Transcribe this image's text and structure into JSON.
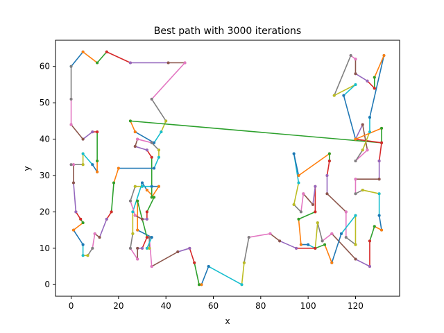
{
  "chart_data": {
    "type": "line",
    "title": "Best path with 3000 iterations",
    "xlabel": "x",
    "ylabel": "y",
    "xlim": [
      -6.6,
      138.6
    ],
    "ylim": [
      -3.2,
      67.2
    ],
    "xticks": [
      0,
      20,
      40,
      60,
      80,
      100,
      120
    ],
    "yticks": [
      0,
      10,
      20,
      30,
      40,
      50,
      60
    ],
    "grid": false,
    "colors": [
      "#1f77b4",
      "#ff7f0e",
      "#2ca02c",
      "#d62728",
      "#9467bd",
      "#8c564b",
      "#e377c2",
      "#7f7f7f",
      "#bcbd22",
      "#17becf"
    ],
    "path": [
      [
        0,
        60
      ],
      [
        5,
        64
      ],
      [
        11,
        61
      ],
      [
        15,
        64
      ],
      [
        25,
        61
      ],
      [
        41,
        61
      ],
      [
        48,
        61
      ],
      [
        34,
        51
      ],
      [
        40,
        45
      ],
      [
        38,
        42
      ],
      [
        35,
        39
      ],
      [
        27,
        42
      ],
      [
        25,
        45
      ],
      [
        131,
        39
      ],
      [
        120,
        40
      ],
      [
        123,
        44
      ],
      [
        125,
        37
      ],
      [
        120,
        34
      ],
      [
        123,
        37
      ],
      [
        126,
        42
      ],
      [
        126,
        46
      ],
      [
        132,
        63
      ],
      [
        128,
        57
      ],
      [
        128,
        54
      ],
      [
        125,
        56
      ],
      [
        120,
        58
      ],
      [
        120,
        62
      ],
      [
        118,
        63
      ],
      [
        111,
        52
      ],
      [
        120,
        55
      ],
      [
        115,
        52
      ],
      [
        120,
        40
      ],
      [
        131,
        43
      ],
      [
        131,
        39
      ],
      [
        130,
        34
      ],
      [
        130,
        29
      ],
      [
        120,
        29
      ],
      [
        120,
        25
      ],
      [
        123,
        26
      ],
      [
        130,
        25
      ],
      [
        130,
        19
      ],
      [
        131,
        15
      ],
      [
        128,
        16
      ],
      [
        126,
        12
      ],
      [
        126,
        5
      ],
      [
        120,
        7
      ],
      [
        110,
        14
      ],
      [
        106,
        12
      ],
      [
        104,
        17
      ],
      [
        103,
        10
      ],
      [
        100,
        11
      ],
      [
        97,
        11
      ],
      [
        96,
        18
      ],
      [
        103,
        20
      ],
      [
        103,
        27
      ],
      [
        102,
        22
      ],
      [
        98,
        25
      ],
      [
        97,
        20
      ],
      [
        94,
        22
      ],
      [
        96,
        28
      ],
      [
        94,
        36
      ],
      [
        96,
        30
      ],
      [
        109,
        36
      ],
      [
        109,
        34
      ],
      [
        108,
        30
      ],
      [
        108,
        25
      ],
      [
        116,
        20
      ],
      [
        116,
        13
      ],
      [
        120,
        11
      ],
      [
        120,
        19
      ],
      [
        114,
        14
      ],
      [
        110,
        6
      ],
      [
        107,
        11
      ],
      [
        103,
        10
      ],
      [
        95,
        10
      ],
      [
        88,
        12
      ],
      [
        84,
        14
      ],
      [
        75,
        13
      ],
      [
        73,
        6
      ],
      [
        72,
        0
      ],
      [
        58,
        5
      ],
      [
        55,
        0
      ],
      [
        54,
        0
      ],
      [
        52,
        6
      ],
      [
        50,
        10
      ],
      [
        45,
        9
      ],
      [
        34,
        5
      ],
      [
        33,
        13
      ],
      [
        33,
        10
      ],
      [
        32,
        10
      ],
      [
        34,
        13
      ],
      [
        28,
        15
      ],
      [
        28,
        23
      ],
      [
        32,
        13
      ],
      [
        30,
        10
      ],
      [
        28,
        10
      ],
      [
        28,
        7
      ],
      [
        25,
        10
      ],
      [
        26,
        14
      ],
      [
        26,
        20
      ],
      [
        30,
        28
      ],
      [
        32,
        26
      ],
      [
        35,
        24
      ],
      [
        32,
        20
      ],
      [
        32,
        18
      ],
      [
        30,
        18
      ],
      [
        27,
        19
      ],
      [
        25,
        23
      ],
      [
        27,
        27
      ],
      [
        30,
        27
      ],
      [
        34,
        27
      ],
      [
        37,
        27
      ],
      [
        34,
        24
      ],
      [
        34,
        35
      ],
      [
        32,
        37
      ],
      [
        27,
        38
      ],
      [
        28,
        40
      ],
      [
        34,
        39
      ],
      [
        37,
        37
      ],
      [
        37,
        35
      ],
      [
        35,
        32
      ],
      [
        20,
        32
      ],
      [
        18,
        28
      ],
      [
        17,
        20
      ],
      [
        15,
        18
      ],
      [
        12,
        13
      ],
      [
        10,
        14
      ],
      [
        9,
        10
      ],
      [
        7,
        8
      ],
      [
        5,
        8
      ],
      [
        5,
        11
      ],
      [
        1,
        15
      ],
      [
        5,
        17
      ],
      [
        4,
        18
      ],
      [
        2,
        20
      ],
      [
        1,
        28
      ],
      [
        1,
        33
      ],
      [
        0,
        33
      ],
      [
        5,
        33
      ],
      [
        5,
        36
      ],
      [
        9,
        33
      ],
      [
        11,
        31
      ],
      [
        11,
        34
      ],
      [
        11,
        42
      ],
      [
        9,
        42
      ],
      [
        5,
        40
      ],
      [
        0,
        44
      ],
      [
        0,
        51
      ],
      [
        0,
        60
      ]
    ]
  }
}
